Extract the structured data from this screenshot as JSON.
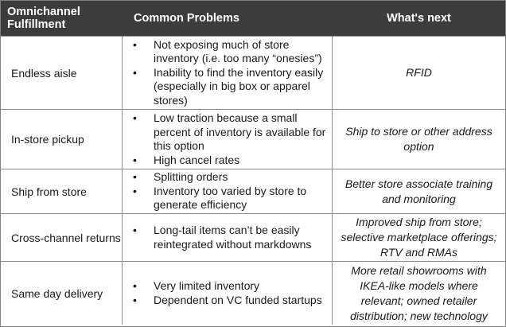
{
  "table": {
    "headers": [
      "Omnichannel Fulfillment",
      "Common Problems",
      "What's next"
    ],
    "rows": [
      {
        "channel": "Endless aisle",
        "problems": [
          "Not exposing much of store inventory (i.e. too many “onesies”)",
          "Inability to find the inventory easily (especially in big box or apparel stores)"
        ],
        "next": "RFID"
      },
      {
        "channel": "In-store pickup",
        "problems": [
          "Low traction because a small percent of inventory is available for this option",
          "High cancel rates"
        ],
        "next": "Ship to store or other address option"
      },
      {
        "channel": "Ship from store",
        "problems": [
          "Splitting orders",
          "Inventory too varied by store to generate efficiency"
        ],
        "next": "Better store associate training and monitoring"
      },
      {
        "channel": "Cross-channel returns",
        "problems": [
          "Long-tail items can’t be easily reintegrated without markdowns"
        ],
        "next": "Improved ship from store; selective marketplace offerings; RTV and RMAs"
      },
      {
        "channel": "Same day delivery",
        "problems": [
          "Very limited inventory",
          "Dependent on VC funded startups"
        ],
        "next": "More retail showrooms with IKEA-like models where relevant; owned retailer distribution; new technology"
      }
    ]
  },
  "colors": {
    "header_bg": "#3c3c3c",
    "header_text": "#ffffff",
    "border": "#8a8a8a"
  }
}
